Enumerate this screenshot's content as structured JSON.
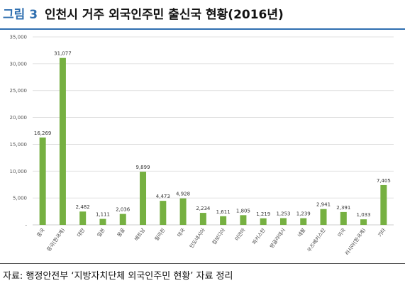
{
  "figure": {
    "label": "그림 3",
    "title": "인천시 거주 외국인주민 출신국 현황(2016년)"
  },
  "source_note": "자료: 행정안전부 ‘지방자치단체 외국인주민 현황’ 자료 정리",
  "colors": {
    "bar": "#76b041",
    "accent": "#2f6fb0",
    "grid": "#d9d9d9"
  },
  "chart_data": {
    "type": "bar",
    "title": "",
    "xlabel": "",
    "ylabel": "",
    "ylim": [
      0,
      35000
    ],
    "yticks": [
      0,
      5000,
      10000,
      15000,
      20000,
      25000,
      30000,
      35000
    ],
    "ytick_labels": [
      "-",
      "5,000",
      "10,000",
      "15,000",
      "20,000",
      "25,000",
      "30,000",
      "35,000"
    ],
    "grid": true,
    "categories": [
      "중국",
      "중국(한국계)",
      "대만",
      "일본",
      "몽골",
      "베트남",
      "필리핀",
      "태국",
      "인도네시아",
      "캄보디아",
      "미얀마",
      "파키스탄",
      "방글라데시",
      "네팔",
      "우즈베키스탄",
      "미국",
      "러시아(한국계)",
      "기타"
    ],
    "values": [
      16269,
      31077,
      2482,
      1111,
      2036,
      9899,
      4473,
      4928,
      2234,
      1611,
      1805,
      1219,
      1253,
      1239,
      2941,
      2391,
      1033,
      7405
    ],
    "value_labels": [
      "16,269",
      "31,077",
      "2,482",
      "1,111",
      "2,036",
      "9,899",
      "4,473",
      "4,928",
      "2,234",
      "1,611",
      "1,805",
      "1,219",
      "1,253",
      "1,239",
      "2,941",
      "2,391",
      "1,033",
      "7,405"
    ]
  }
}
